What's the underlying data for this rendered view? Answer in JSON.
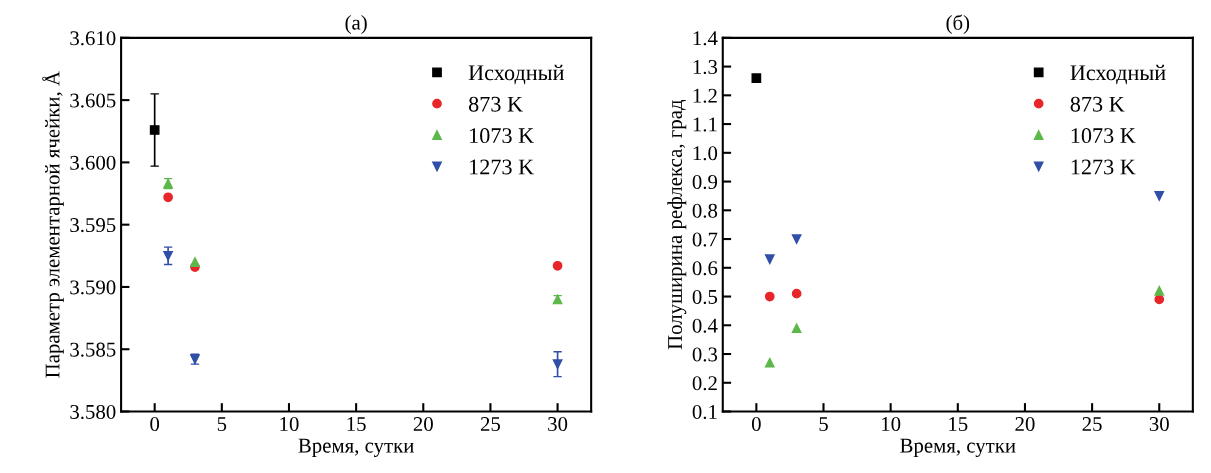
{
  "chart_data": [
    {
      "type": "scatter",
      "title": "(а)",
      "xlabel": "Время, сутки",
      "ylabel": "Параметр элементарной ячейки, Å",
      "xlim": [
        -2.5,
        32.5
      ],
      "xticks": [
        0,
        5,
        10,
        15,
        20,
        25,
        30
      ],
      "ylim": [
        3.58,
        3.61
      ],
      "yticks": [
        {
          "value": 3.58,
          "label": "3.580"
        },
        {
          "value": 3.585,
          "label": "3.585"
        },
        {
          "value": 3.59,
          "label": "3.590"
        },
        {
          "value": 3.595,
          "label": "3.595"
        },
        {
          "value": 3.6,
          "label": "3.600"
        },
        {
          "value": 3.605,
          "label": "3.605"
        },
        {
          "value": 3.61,
          "label": "3.610"
        }
      ],
      "grid": false,
      "legend": "top right",
      "series": [
        {
          "name": "Исходный",
          "color": "#000000",
          "marker": "square",
          "x": [
            0
          ],
          "values": [
            3.6026
          ],
          "errors": [
            0.0029
          ]
        },
        {
          "name": "873 K",
          "color": "#e8262a",
          "marker": "circle",
          "x": [
            1,
            3,
            30
          ],
          "values": [
            3.5972,
            3.5916,
            3.5917
          ]
        },
        {
          "name": "1073 K",
          "color": "#5db84a",
          "marker": "triangle",
          "x": [
            1,
            3,
            30
          ],
          "values": [
            3.5983,
            3.592,
            3.589
          ],
          "errors": [
            0.0004,
            null,
            0.0003
          ]
        },
        {
          "name": "1273 K",
          "color": "#2f4fa8",
          "marker": "triangle_down",
          "x": [
            1,
            3,
            30
          ],
          "values": [
            3.5925,
            3.5842,
            3.5838
          ],
          "errors": [
            0.0007,
            0.0004,
            0.001
          ]
        }
      ]
    },
    {
      "type": "scatter",
      "title": "(б)",
      "xlabel": "Время, сутки",
      "ylabel": "Полуширина рефлекса, град",
      "xlim": [
        -2.5,
        32.5
      ],
      "xticks": [
        0,
        5,
        10,
        15,
        20,
        25,
        30
      ],
      "ylim": [
        0.1,
        1.4
      ],
      "yticks": [
        0.1,
        0.2,
        0.3,
        0.4,
        0.5,
        0.6,
        0.7,
        0.8,
        0.9,
        {
          "value": 1.0,
          "label": "1.0"
        },
        1.1,
        1.2,
        1.3,
        1.4
      ],
      "grid": false,
      "legend": "top right",
      "series": [
        {
          "name": "Исходный",
          "color": "#000000",
          "marker": "square",
          "x": [
            0
          ],
          "values": [
            1.26
          ]
        },
        {
          "name": "873 K",
          "color": "#e8262a",
          "marker": "circle",
          "x": [
            1,
            3,
            30
          ],
          "values": [
            0.5,
            0.51,
            0.49
          ]
        },
        {
          "name": "1073 K",
          "color": "#5db84a",
          "marker": "triangle",
          "x": [
            1,
            3,
            30
          ],
          "values": [
            0.27,
            0.39,
            0.52
          ]
        },
        {
          "name": "1273 K",
          "color": "#2f4fa8",
          "marker": "triangle_down",
          "x": [
            1,
            3,
            30
          ],
          "values": [
            0.63,
            0.7,
            0.85
          ]
        }
      ]
    }
  ]
}
